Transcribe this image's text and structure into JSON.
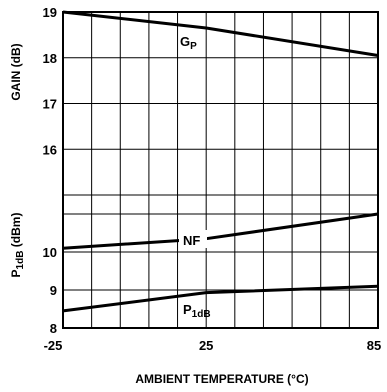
{
  "chart_data": {
    "type": "line",
    "xlabel": "AMBIENT TEMPERATURE (°C)",
    "x_ticks": [
      "-25",
      "25",
      "85"
    ],
    "left_axis_upper_label": "GAIN (dB)",
    "left_axis_lower_label_main": "P",
    "left_axis_lower_label_sub": "1dB",
    "left_axis_lower_label_unit": " (dBm)",
    "gain_ticks": [
      "19",
      "18",
      "17",
      "16"
    ],
    "p1db_ticks": [
      "10",
      "9",
      "8"
    ],
    "xlim": [
      -25,
      85
    ],
    "gain_range": [
      15,
      19
    ],
    "p1db_range": [
      8,
      11.5
    ],
    "grid": true,
    "series": [
      {
        "name_main": "G",
        "name_sub": "P",
        "axis": "gain",
        "x": [
          -25,
          25,
          85
        ],
        "y": [
          19.0,
          18.65,
          18.05
        ]
      },
      {
        "name_main": "NF",
        "name_sub": "",
        "axis": "p1db",
        "x": [
          -25,
          25,
          85
        ],
        "y": [
          10.1,
          10.35,
          11.0
        ]
      },
      {
        "name_main": "P",
        "name_sub": "1dB",
        "axis": "p1db",
        "x": [
          -25,
          25,
          85
        ],
        "y": [
          8.45,
          8.93,
          9.1
        ]
      }
    ]
  }
}
